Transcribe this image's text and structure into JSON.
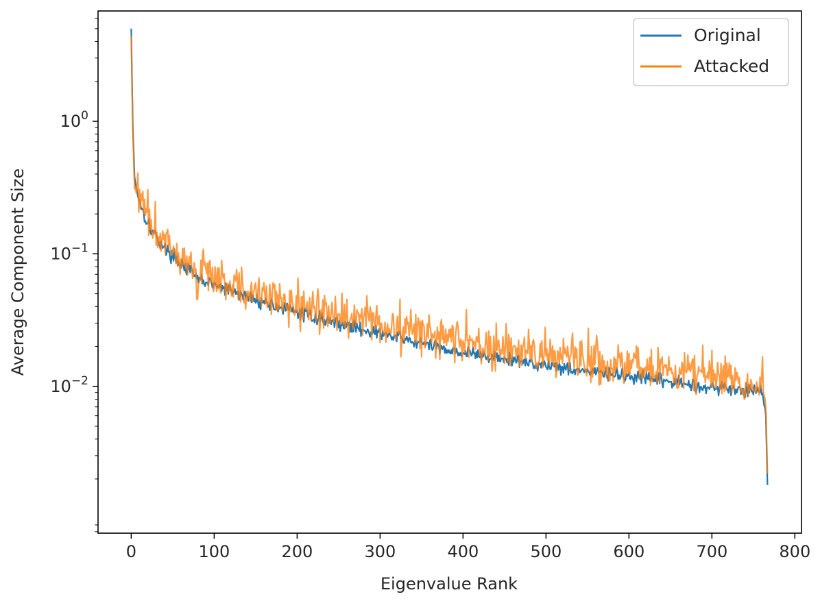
{
  "chart_data": {
    "type": "line",
    "title": "",
    "xlabel": "Eigenvalue Rank",
    "ylabel": "Average Component Size",
    "xlim": [
      -40,
      808
    ],
    "ylim": [
      0.00078,
      6.8
    ],
    "yscale": "log",
    "x_ticks": [
      0,
      100,
      200,
      300,
      400,
      500,
      600,
      700,
      800
    ],
    "x_tick_labels": [
      "0",
      "100",
      "200",
      "300",
      "400",
      "500",
      "600",
      "700",
      "800"
    ],
    "y_ticks": [
      1,
      0.1,
      0.01
    ],
    "y_tick_labels": [
      {
        "base": "10",
        "exp": "0"
      },
      {
        "base": "10",
        "exp": "−1"
      },
      {
        "base": "10",
        "exp": "−2"
      }
    ],
    "grid": false,
    "legend": {
      "position": "top-right"
    },
    "series": [
      {
        "name": "Original",
        "color": "#1f77b4",
        "n_points": 768,
        "anchors": [
          [
            0,
            5.0
          ],
          [
            1,
            2.0
          ],
          [
            2,
            0.9
          ],
          [
            4,
            0.38
          ],
          [
            8,
            0.28
          ],
          [
            15,
            0.2
          ],
          [
            25,
            0.15
          ],
          [
            40,
            0.11
          ],
          [
            60,
            0.085
          ],
          [
            80,
            0.065
          ],
          [
            100,
            0.058
          ],
          [
            150,
            0.045
          ],
          [
            200,
            0.036
          ],
          [
            250,
            0.03
          ],
          [
            300,
            0.025
          ],
          [
            350,
            0.021
          ],
          [
            400,
            0.018
          ],
          [
            450,
            0.016
          ],
          [
            500,
            0.0145
          ],
          [
            550,
            0.013
          ],
          [
            600,
            0.0118
          ],
          [
            650,
            0.0108
          ],
          [
            700,
            0.0098
          ],
          [
            750,
            0.0093
          ],
          [
            762,
            0.0092
          ],
          [
            765,
            0.006
          ],
          [
            767,
            0.0018
          ]
        ],
        "noise_amplitude": 0.05
      },
      {
        "name": "Attacked",
        "color": "#ff7f0e",
        "n_points": 768,
        "anchors": [
          [
            0,
            4.4
          ],
          [
            1,
            1.8
          ],
          [
            2,
            0.8
          ],
          [
            4,
            0.33
          ],
          [
            8,
            0.29
          ],
          [
            15,
            0.21
          ],
          [
            25,
            0.16
          ],
          [
            40,
            0.12
          ],
          [
            60,
            0.09
          ],
          [
            80,
            0.07
          ],
          [
            100,
            0.062
          ],
          [
            150,
            0.05
          ],
          [
            200,
            0.04
          ],
          [
            250,
            0.034
          ],
          [
            300,
            0.029
          ],
          [
            350,
            0.025
          ],
          [
            400,
            0.021
          ],
          [
            450,
            0.019
          ],
          [
            500,
            0.017
          ],
          [
            550,
            0.0155
          ],
          [
            600,
            0.0142
          ],
          [
            650,
            0.013
          ],
          [
            700,
            0.0118
          ],
          [
            750,
            0.011
          ],
          [
            762,
            0.0108
          ],
          [
            765,
            0.007
          ],
          [
            767,
            0.0022
          ]
        ],
        "noise_amplitude": 0.15
      }
    ]
  }
}
